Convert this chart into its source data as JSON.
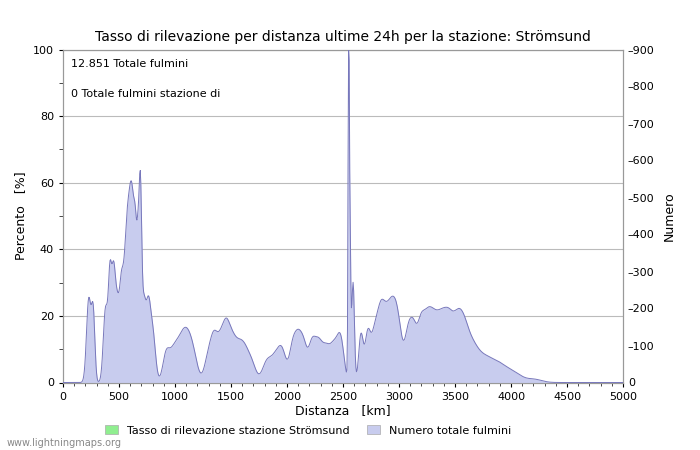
{
  "title": "Tasso di rilevazione per distanza ultime 24h per la stazione: Strömsund",
  "annotation_line1": "12.851 Totale fulmini",
  "annotation_line2": "0 Totale fulmini stazione di",
  "xlabel": "Distanza   [km]",
  "ylabel_left": "Percento   [%]",
  "ylabel_right": "Numero",
  "xlim": [
    0,
    5000
  ],
  "ylim_left": [
    0,
    100
  ],
  "ylim_right": [
    0,
    900
  ],
  "xticks": [
    0,
    500,
    1000,
    1500,
    2000,
    2500,
    3000,
    3500,
    4000,
    4500,
    5000
  ],
  "yticks_left": [
    0,
    20,
    40,
    60,
    80,
    100
  ],
  "yticks_right": [
    0,
    100,
    200,
    300,
    400,
    500,
    600,
    700,
    800,
    900
  ],
  "legend_label1": "Tasso di rilevazione stazione Strömsund",
  "legend_label2": "Numero totale fulmini",
  "legend_color1": "#90ee90",
  "legend_color2": "#c8ccee",
  "line_color": "#7777bb",
  "fill_color": "#c8ccee",
  "watermark": "www.lightningmaps.org",
  "background_color": "#ffffff",
  "grid_color": "#bbbbbb",
  "title_fontsize": 10,
  "tick_fontsize": 8,
  "label_fontsize": 9
}
